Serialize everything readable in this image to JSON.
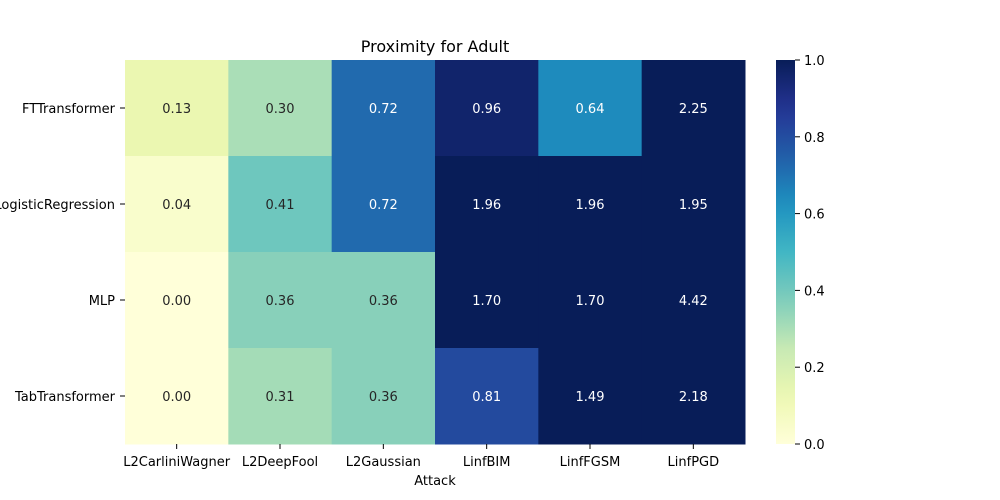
{
  "chart_data": {
    "type": "heatmap",
    "title": "Proximity for Adult",
    "xlabel": "Attack",
    "ylabel": "",
    "x_categories": [
      "L2CarliniWagner",
      "L2DeepFool",
      "L2Gaussian",
      "LinfBIM",
      "LinfFGSM",
      "LinfPGD"
    ],
    "y_categories": [
      "FTTransformer",
      "LogisticRegression",
      "MLP",
      "TabTransformer"
    ],
    "values": [
      [
        0.13,
        0.3,
        0.72,
        0.96,
        0.64,
        2.25
      ],
      [
        0.04,
        0.41,
        0.72,
        1.96,
        1.96,
        1.95
      ],
      [
        0.0,
        0.36,
        0.36,
        1.7,
        1.7,
        4.42
      ],
      [
        0.0,
        0.31,
        0.36,
        0.81,
        1.49,
        2.18
      ]
    ],
    "value_format": "2 decimals",
    "colormap": "YlGnBu",
    "colorbar": {
      "range": [
        0.0,
        1.0
      ],
      "ticks": [
        "0.0",
        "0.2",
        "0.4",
        "0.6",
        "0.8",
        "1.0"
      ]
    },
    "grid": false,
    "legend": "colorbar right"
  }
}
